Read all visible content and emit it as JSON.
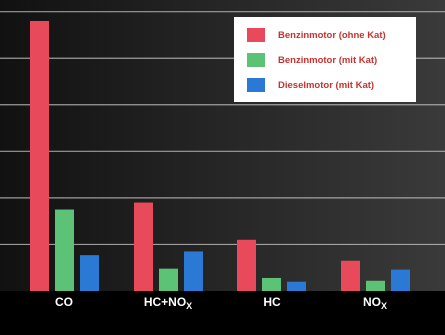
{
  "chart_data": {
    "type": "bar",
    "title": "",
    "xlabel": "",
    "ylabel": "",
    "ylim": [
      0,
      6
    ],
    "grid": true,
    "legend_position": "top-right",
    "categories": [
      "CO",
      "HC+NOX",
      "HC",
      "NOX"
    ],
    "category_parts": [
      {
        "base": "CO",
        "sub": ""
      },
      {
        "base": "HC+NO",
        "sub": "X"
      },
      {
        "base": "HC",
        "sub": ""
      },
      {
        "base": "NO",
        "sub": "X"
      }
    ],
    "series": [
      {
        "name": "Benzinmotor (ohne Kat)",
        "color": "#e8495b",
        "values": [
          5.8,
          1.9,
          1.1,
          0.65
        ]
      },
      {
        "name": "Benzinmotor (mit Kat)",
        "color": "#5cc276",
        "values": [
          1.75,
          0.48,
          0.28,
          0.22
        ]
      },
      {
        "name": "Dieselmotor (mit Kat)",
        "color": "#2a79d4",
        "values": [
          0.77,
          0.85,
          0.2,
          0.46
        ]
      }
    ]
  }
}
